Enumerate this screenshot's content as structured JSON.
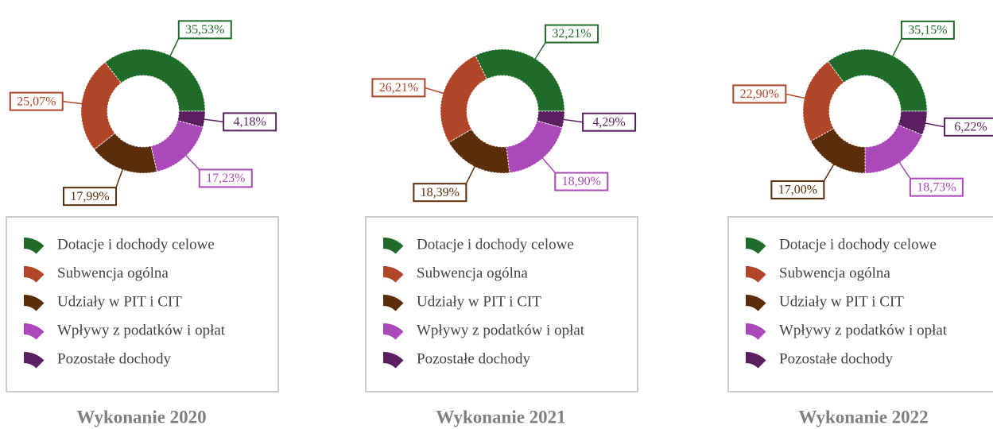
{
  "chart_data": [
    {
      "type": "pie",
      "title": "Wykonanie 2020",
      "categories": [
        "Dotacje i dochody celowe",
        "Subwencja ogólna",
        "Udziały w PIT i CIT",
        "Wpływy z podatków i opłat",
        "Pozostałe dochody"
      ],
      "values": [
        35.53,
        25.07,
        17.99,
        17.23,
        4.18
      ],
      "value_labels": [
        "35,53%",
        "25,07%",
        "17,99%",
        "17,23%",
        "4,18%"
      ],
      "colors": [
        "#1e6b2a",
        "#b04527",
        "#5c2d0b",
        "#a94ab8",
        "#5a1f5e"
      ]
    },
    {
      "type": "pie",
      "title": "Wykonanie 2021",
      "categories": [
        "Dotacje i dochody celowe",
        "Subwencja ogólna",
        "Udziały w PIT i CIT",
        "Wpływy z podatków i opłat",
        "Pozostałe dochody"
      ],
      "values": [
        32.21,
        26.21,
        18.39,
        18.9,
        4.29
      ],
      "value_labels": [
        "32,21%",
        "26,21%",
        "18,39%",
        "18,90%",
        "4,29%"
      ],
      "colors": [
        "#1e6b2a",
        "#b04527",
        "#5c2d0b",
        "#a94ab8",
        "#5a1f5e"
      ]
    },
    {
      "type": "pie",
      "title": "Wykonanie 2022",
      "categories": [
        "Dotacje i dochody celowe",
        "Subwencja ogólna",
        "Udziały w PIT i CIT",
        "Wpływy z podatków i opłat",
        "Pozostałe dochody"
      ],
      "values": [
        35.15,
        22.9,
        17.0,
        18.73,
        6.22
      ],
      "value_labels": [
        "35,15%",
        "22,90%",
        "17,00%",
        "18,73%",
        "6,22%"
      ],
      "colors": [
        "#1e6b2a",
        "#b04527",
        "#5c2d0b",
        "#a94ab8",
        "#5a1f5e"
      ]
    }
  ]
}
